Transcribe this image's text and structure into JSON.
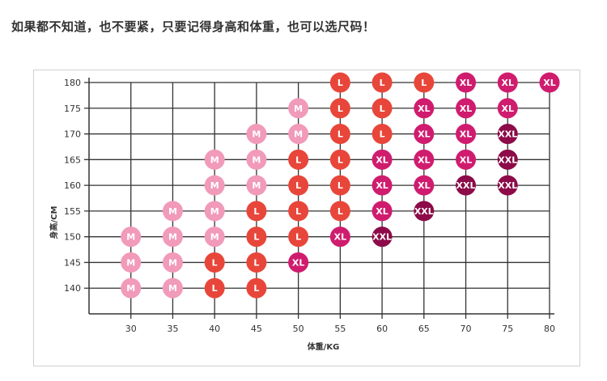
{
  "headline": "如果都不知道，也不要紧，只要记得身高和体重，也可以选尺码！",
  "chart_data": {
    "type": "scatter",
    "title": "",
    "xlabel": "体重/KG",
    "ylabel": "身高/CM",
    "x_ticks": [
      30,
      35,
      40,
      45,
      50,
      55,
      60,
      65,
      70,
      75,
      80
    ],
    "y_ticks": [
      140,
      145,
      150,
      155,
      160,
      165,
      170,
      175,
      180
    ],
    "xlim": [
      25,
      80
    ],
    "ylim": [
      135,
      180
    ],
    "grid": true,
    "size_colors": {
      "M": "#f19ab9",
      "L": "#e8463a",
      "XL": "#d01c6e",
      "XXL": "#8c0b48"
    },
    "points": [
      {
        "x": 30,
        "y": 140,
        "size": "M"
      },
      {
        "x": 30,
        "y": 145,
        "size": "M"
      },
      {
        "x": 30,
        "y": 150,
        "size": "M"
      },
      {
        "x": 35,
        "y": 140,
        "size": "M"
      },
      {
        "x": 35,
        "y": 145,
        "size": "M"
      },
      {
        "x": 35,
        "y": 150,
        "size": "M"
      },
      {
        "x": 35,
        "y": 155,
        "size": "M"
      },
      {
        "x": 40,
        "y": 140,
        "size": "L"
      },
      {
        "x": 40,
        "y": 145,
        "size": "L"
      },
      {
        "x": 40,
        "y": 150,
        "size": "M"
      },
      {
        "x": 40,
        "y": 155,
        "size": "M"
      },
      {
        "x": 40,
        "y": 160,
        "size": "M"
      },
      {
        "x": 40,
        "y": 165,
        "size": "M"
      },
      {
        "x": 45,
        "y": 140,
        "size": "L"
      },
      {
        "x": 45,
        "y": 145,
        "size": "L"
      },
      {
        "x": 45,
        "y": 150,
        "size": "L"
      },
      {
        "x": 45,
        "y": 155,
        "size": "L"
      },
      {
        "x": 45,
        "y": 160,
        "size": "M"
      },
      {
        "x": 45,
        "y": 165,
        "size": "M"
      },
      {
        "x": 45,
        "y": 170,
        "size": "M"
      },
      {
        "x": 50,
        "y": 145,
        "size": "XL"
      },
      {
        "x": 50,
        "y": 150,
        "size": "L"
      },
      {
        "x": 50,
        "y": 155,
        "size": "L"
      },
      {
        "x": 50,
        "y": 160,
        "size": "L"
      },
      {
        "x": 50,
        "y": 165,
        "size": "L"
      },
      {
        "x": 50,
        "y": 170,
        "size": "M"
      },
      {
        "x": 50,
        "y": 175,
        "size": "M"
      },
      {
        "x": 55,
        "y": 150,
        "size": "XL"
      },
      {
        "x": 55,
        "y": 155,
        "size": "L"
      },
      {
        "x": 55,
        "y": 160,
        "size": "L"
      },
      {
        "x": 55,
        "y": 165,
        "size": "L"
      },
      {
        "x": 55,
        "y": 170,
        "size": "L"
      },
      {
        "x": 55,
        "y": 175,
        "size": "L"
      },
      {
        "x": 55,
        "y": 180,
        "size": "L"
      },
      {
        "x": 60,
        "y": 150,
        "size": "XXL"
      },
      {
        "x": 60,
        "y": 155,
        "size": "XL"
      },
      {
        "x": 60,
        "y": 160,
        "size": "XL"
      },
      {
        "x": 60,
        "y": 165,
        "size": "XL"
      },
      {
        "x": 60,
        "y": 170,
        "size": "L"
      },
      {
        "x": 60,
        "y": 175,
        "size": "L"
      },
      {
        "x": 60,
        "y": 180,
        "size": "L"
      },
      {
        "x": 65,
        "y": 155,
        "size": "XXL"
      },
      {
        "x": 65,
        "y": 160,
        "size": "XL"
      },
      {
        "x": 65,
        "y": 165,
        "size": "XL"
      },
      {
        "x": 65,
        "y": 170,
        "size": "XL"
      },
      {
        "x": 65,
        "y": 175,
        "size": "XL"
      },
      {
        "x": 65,
        "y": 180,
        "size": "L"
      },
      {
        "x": 70,
        "y": 160,
        "size": "XXL"
      },
      {
        "x": 70,
        "y": 165,
        "size": "XL"
      },
      {
        "x": 70,
        "y": 170,
        "size": "XL"
      },
      {
        "x": 70,
        "y": 175,
        "size": "XL"
      },
      {
        "x": 70,
        "y": 180,
        "size": "XL"
      },
      {
        "x": 75,
        "y": 160,
        "size": "XXL"
      },
      {
        "x": 75,
        "y": 165,
        "size": "XXL"
      },
      {
        "x": 75,
        "y": 170,
        "size": "XXL"
      },
      {
        "x": 75,
        "y": 175,
        "size": "XL"
      },
      {
        "x": 75,
        "y": 180,
        "size": "XL"
      },
      {
        "x": 80,
        "y": 180,
        "size": "XL"
      }
    ]
  }
}
